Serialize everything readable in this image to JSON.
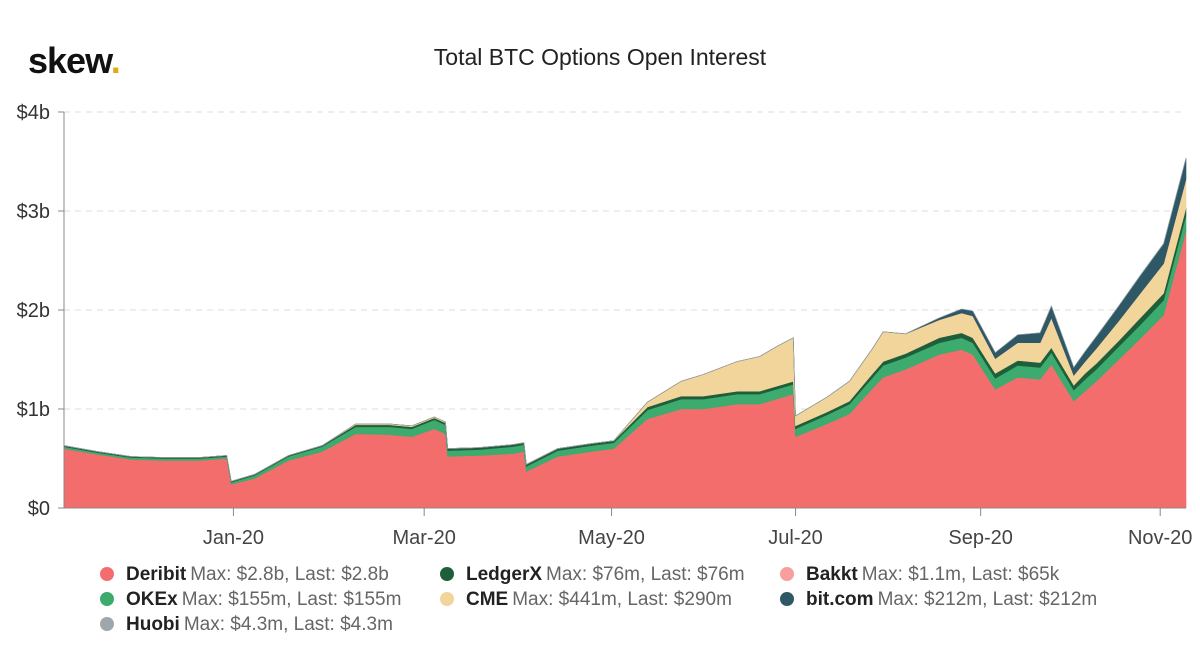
{
  "brand": {
    "name": "skew",
    "dot": "."
  },
  "chart_data": {
    "type": "area",
    "stacked": true,
    "title": "Total BTC Options Open Interest",
    "ylim": [
      0,
      4
    ],
    "y_unit": "billions USD",
    "y_ticks": [
      {
        "value": 0,
        "label": "$0"
      },
      {
        "value": 1,
        "label": "$1b"
      },
      {
        "value": 2,
        "label": "$2b"
      },
      {
        "value": 3,
        "label": "$3b"
      },
      {
        "value": 4,
        "label": "$4b"
      }
    ],
    "x_ticks": [
      {
        "t": 0.151,
        "label": "Jan-20"
      },
      {
        "t": 0.321,
        "label": "Mar-20"
      },
      {
        "t": 0.488,
        "label": "May-20"
      },
      {
        "t": 0.652,
        "label": "Jul-20"
      },
      {
        "t": 0.817,
        "label": "Sep-20"
      },
      {
        "t": 0.977,
        "label": "Nov-20"
      }
    ],
    "x": [
      0,
      0.03,
      0.06,
      0.09,
      0.12,
      0.145,
      0.149,
      0.17,
      0.2,
      0.23,
      0.26,
      0.29,
      0.31,
      0.33,
      0.34,
      0.342,
      0.37,
      0.4,
      0.41,
      0.412,
      0.44,
      0.47,
      0.49,
      0.52,
      0.55,
      0.57,
      0.6,
      0.62,
      0.635,
      0.65,
      0.652,
      0.68,
      0.7,
      0.72,
      0.73,
      0.75,
      0.78,
      0.8,
      0.81,
      0.83,
      0.85,
      0.87,
      0.88,
      0.9,
      0.91,
      0.92,
      0.94,
      0.96,
      0.98,
      1.0
    ],
    "series": [
      {
        "name": "Deribit",
        "color": "#f46d6d",
        "max": "$2.8b",
        "last": "$2.8b",
        "values": [
          0.6,
          0.54,
          0.49,
          0.48,
          0.48,
          0.5,
          0.24,
          0.3,
          0.48,
          0.57,
          0.75,
          0.74,
          0.72,
          0.8,
          0.75,
          0.52,
          0.53,
          0.55,
          0.57,
          0.37,
          0.52,
          0.57,
          0.6,
          0.9,
          1.0,
          1.0,
          1.05,
          1.05,
          1.1,
          1.15,
          0.72,
          0.85,
          0.95,
          1.2,
          1.32,
          1.4,
          1.55,
          1.6,
          1.55,
          1.2,
          1.32,
          1.3,
          1.45,
          1.08,
          1.18,
          1.28,
          1.5,
          1.72,
          1.95,
          2.8
        ]
      },
      {
        "name": "OKEx",
        "color": "#3daa6e",
        "max": "$155m",
        "last": "$155m",
        "values": [
          0.02,
          0.02,
          0.02,
          0.02,
          0.02,
          0.02,
          0.02,
          0.03,
          0.04,
          0.05,
          0.07,
          0.08,
          0.08,
          0.09,
          0.09,
          0.06,
          0.06,
          0.07,
          0.07,
          0.05,
          0.06,
          0.06,
          0.06,
          0.09,
          0.1,
          0.1,
          0.1,
          0.1,
          0.1,
          0.1,
          0.08,
          0.09,
          0.1,
          0.11,
          0.12,
          0.12,
          0.12,
          0.12,
          0.12,
          0.11,
          0.12,
          0.12,
          0.12,
          0.11,
          0.12,
          0.12,
          0.13,
          0.14,
          0.15,
          0.155
        ]
      },
      {
        "name": "LedgerX",
        "color": "#1f5e3a",
        "max": "$76m",
        "last": "$76m",
        "values": [
          0.01,
          0.01,
          0.01,
          0.01,
          0.01,
          0.01,
          0.01,
          0.01,
          0.01,
          0.01,
          0.02,
          0.02,
          0.02,
          0.02,
          0.02,
          0.02,
          0.02,
          0.02,
          0.02,
          0.02,
          0.02,
          0.02,
          0.02,
          0.03,
          0.03,
          0.03,
          0.03,
          0.03,
          0.03,
          0.03,
          0.03,
          0.03,
          0.03,
          0.04,
          0.04,
          0.04,
          0.05,
          0.05,
          0.05,
          0.05,
          0.05,
          0.05,
          0.05,
          0.05,
          0.06,
          0.06,
          0.06,
          0.07,
          0.07,
          0.076
        ]
      },
      {
        "name": "CME",
        "color": "#f1d59a",
        "max": "$441m",
        "last": "$290m",
        "values": [
          0.0,
          0.0,
          0.0,
          0.0,
          0.0,
          0.0,
          0.0,
          0.0,
          0.0,
          0.0,
          0.01,
          0.01,
          0.01,
          0.01,
          0.01,
          0.0,
          0.0,
          0.0,
          0.0,
          0.0,
          0.0,
          0.0,
          0.0,
          0.05,
          0.15,
          0.22,
          0.3,
          0.35,
          0.4,
          0.44,
          0.1,
          0.15,
          0.2,
          0.25,
          0.3,
          0.2,
          0.18,
          0.2,
          0.22,
          0.15,
          0.18,
          0.2,
          0.3,
          0.1,
          0.12,
          0.15,
          0.2,
          0.25,
          0.3,
          0.29
        ]
      },
      {
        "name": "Bakkt",
        "color": "#f79e9e",
        "max": "$1.1m",
        "last": "$65k",
        "values": [
          0.0,
          0.0,
          0.0,
          0.0,
          0.0,
          0.0,
          0.0,
          0.0,
          0.0,
          0.0,
          0.0,
          0.0,
          0.0,
          0.0,
          0.0,
          0.0,
          0.0,
          0.0,
          0.0,
          0.0,
          0.0,
          0.0,
          0.0,
          0.0,
          0.0,
          0.0,
          0.0,
          0.0,
          0.0,
          0.0,
          0.0,
          0.0,
          0.0,
          0.0,
          0.0,
          0.0,
          0.0,
          0.0,
          0.0,
          0.0,
          0.0,
          0.0,
          0.0,
          0.0,
          0.0,
          0.0,
          0.0,
          0.0,
          0.0,
          0.0
        ]
      },
      {
        "name": "bit.com",
        "color": "#2e5866",
        "max": "$212m",
        "last": "$212m",
        "values": [
          0.0,
          0.0,
          0.0,
          0.0,
          0.0,
          0.0,
          0.0,
          0.0,
          0.0,
          0.0,
          0.0,
          0.0,
          0.0,
          0.0,
          0.0,
          0.0,
          0.0,
          0.0,
          0.0,
          0.0,
          0.0,
          0.0,
          0.0,
          0.0,
          0.0,
          0.0,
          0.0,
          0.0,
          0.0,
          0.0,
          0.0,
          0.0,
          0.0,
          0.0,
          0.0,
          0.0,
          0.02,
          0.04,
          0.05,
          0.06,
          0.08,
          0.1,
          0.12,
          0.08,
          0.1,
          0.12,
          0.15,
          0.18,
          0.2,
          0.212
        ]
      },
      {
        "name": "Huobi",
        "color": "#9ea7ad",
        "max": "$4.3m",
        "last": "$4.3m",
        "values": [
          0.0,
          0.0,
          0.0,
          0.0,
          0.0,
          0.0,
          0.0,
          0.0,
          0.0,
          0.0,
          0.0,
          0.0,
          0.0,
          0.0,
          0.0,
          0.0,
          0.0,
          0.0,
          0.0,
          0.0,
          0.0,
          0.0,
          0.0,
          0.0,
          0.0,
          0.0,
          0.0,
          0.0,
          0.0,
          0.0,
          0.0,
          0.0,
          0.0,
          0.0,
          0.0,
          0.0,
          0.0,
          0.0,
          0.0,
          0.0,
          0.0,
          0.0,
          0.0,
          0.0,
          0.0,
          0.0,
          0.002,
          0.003,
          0.004,
          0.0043
        ]
      }
    ],
    "legend": [
      {
        "name": "Deribit",
        "stats": "Max: $2.8b, Last: $2.8b",
        "color": "#f46d6d"
      },
      {
        "name": "LedgerX",
        "stats": "Max: $76m, Last: $76m",
        "color": "#1f5e3a"
      },
      {
        "name": "Bakkt",
        "stats": "Max: $1.1m, Last: $65k",
        "color": "#f79e9e"
      },
      {
        "name": "OKEx",
        "stats": "Max: $155m, Last: $155m",
        "color": "#3daa6e"
      },
      {
        "name": "CME",
        "stats": "Max: $441m, Last: $290m",
        "color": "#f1d59a"
      },
      {
        "name": "bit.com",
        "stats": "Max: $212m, Last: $212m",
        "color": "#2e5866"
      },
      {
        "name": "Huobi",
        "stats": "Max: $4.3m, Last: $4.3m",
        "color": "#9ea7ad"
      }
    ]
  }
}
